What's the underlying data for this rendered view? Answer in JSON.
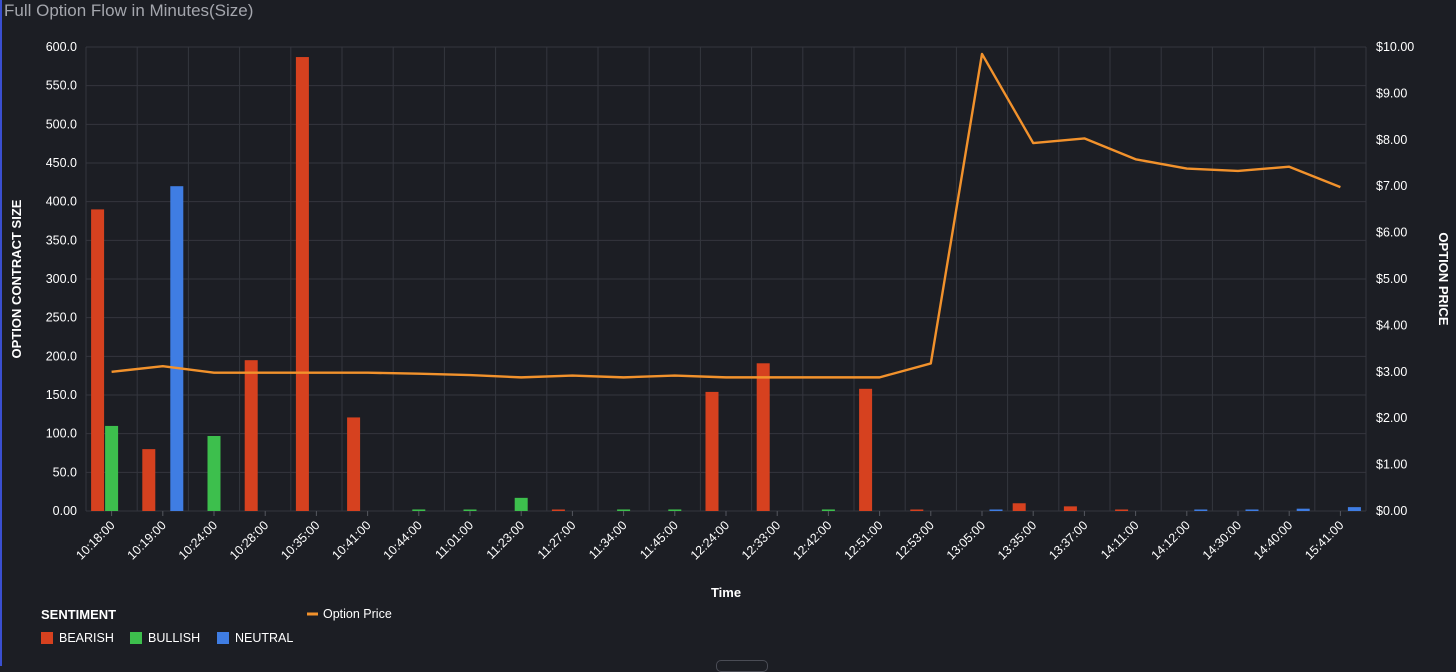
{
  "title": "Full Option Flow in Minutes(Size)",
  "chart_data": {
    "type": "bar",
    "categories": [
      "10:18:00",
      "10:19:00",
      "10:24:00",
      "10:28:00",
      "10:35:00",
      "10:41:00",
      "10:44:00",
      "11:01:00",
      "11:23:00",
      "11:27:00",
      "11:34:00",
      "11:45:00",
      "12:24:00",
      "12:33:00",
      "12:42:00",
      "12:51:00",
      "12:53:00",
      "13:05:00",
      "13:35:00",
      "13:37:00",
      "14:11:00",
      "14:12:00",
      "14:30:00",
      "14:40:00",
      "15:41:00"
    ],
    "series": [
      {
        "name": "BEARISH",
        "color": "#d6411f",
        "values": [
          390,
          80,
          0,
          195,
          587,
          121,
          0,
          0,
          0,
          1,
          0,
          0,
          154,
          191,
          0,
          158,
          1,
          0,
          10,
          6,
          1,
          0,
          0,
          0,
          0
        ]
      },
      {
        "name": "BULLISH",
        "color": "#3dbf4d",
        "values": [
          110,
          0,
          97,
          0,
          0,
          0,
          2,
          1,
          17,
          0,
          2,
          2,
          0,
          0,
          2,
          0,
          0,
          0,
          0,
          0,
          0,
          0,
          0,
          0,
          0
        ]
      },
      {
        "name": "NEUTRAL",
        "color": "#3f7de3",
        "values": [
          0,
          420,
          0,
          0,
          0,
          0,
          0,
          0,
          0,
          0,
          0,
          0,
          0,
          0,
          0,
          0,
          0,
          1,
          0,
          0,
          0,
          1,
          1,
          3,
          5
        ]
      }
    ],
    "line": {
      "name": "Option Price",
      "color": "#f2922c",
      "values": [
        3.0,
        3.12,
        2.98,
        2.98,
        2.98,
        2.98,
        2.96,
        2.93,
        2.88,
        2.92,
        2.88,
        2.92,
        2.88,
        2.88,
        2.88,
        2.88,
        3.18,
        9.85,
        7.93,
        8.03,
        7.58,
        7.38,
        7.33,
        7.42,
        6.98
      ]
    },
    "xlabel": "Time",
    "ylabel": "OPTION CONTRACT SIZE",
    "y2label": "OPTION PRICE",
    "ylim": [
      0,
      600
    ],
    "y2lim": [
      0,
      10
    ],
    "yticks": [
      "0.00",
      "50.0",
      "100.0",
      "150.0",
      "200.0",
      "250.0",
      "300.0",
      "350.0",
      "400.0",
      "450.0",
      "500.0",
      "550.0",
      "600.0"
    ],
    "y2ticks": [
      "$0.00",
      "$1.00",
      "$2.00",
      "$3.00",
      "$4.00",
      "$5.00",
      "$6.00",
      "$7.00",
      "$8.00",
      "$9.00",
      "$10.00"
    ],
    "legend_title": "SENTIMENT",
    "grid": true,
    "legend_position": "bottom-left"
  }
}
